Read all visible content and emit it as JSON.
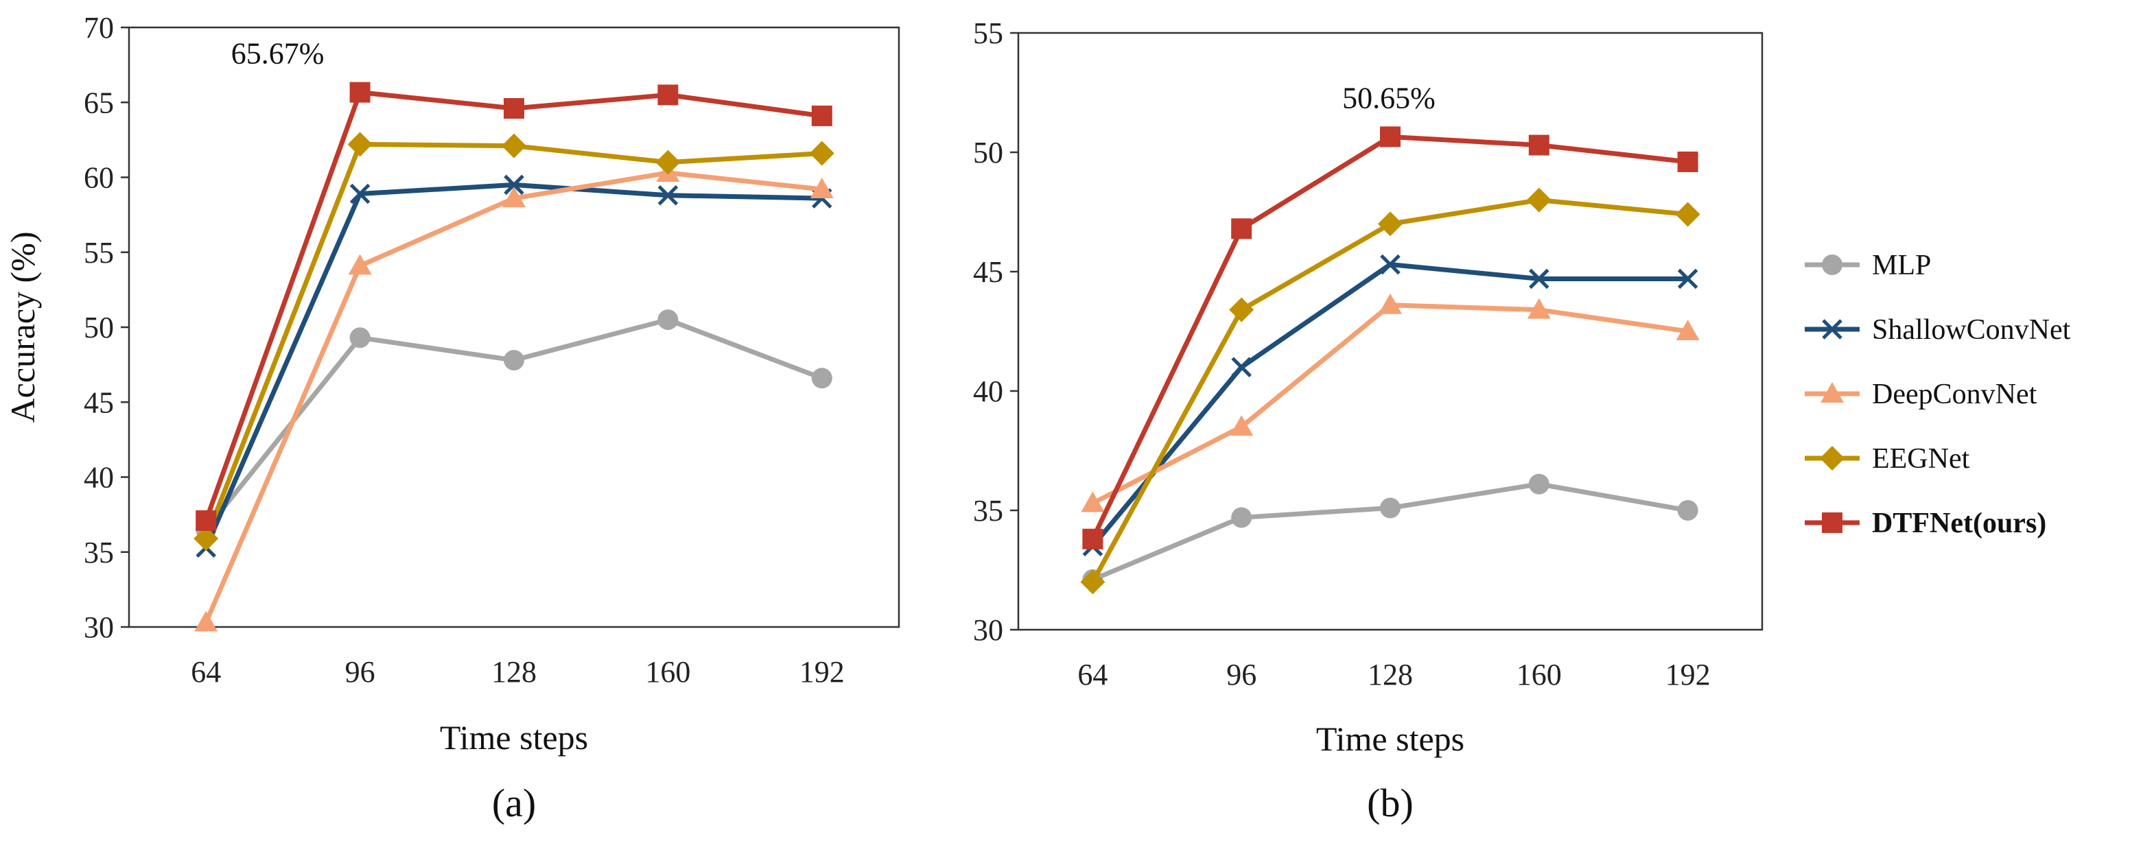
{
  "chart_data": [
    {
      "type": "line",
      "panel_label": "(a)",
      "xlabel": "Time steps",
      "ylabel": "Accuracy (%)",
      "categories": [
        "64",
        "96",
        "128",
        "160",
        "192"
      ],
      "ylim": [
        30,
        70
      ],
      "yticks": [
        "30",
        "35",
        "40",
        "45",
        "50",
        "55",
        "60",
        "65",
        "70"
      ],
      "annotation": {
        "text": "65.67%",
        "series": "DTFNet(ours)",
        "category": "96"
      },
      "series": [
        {
          "name": "MLP",
          "values": [
            36.5,
            49.3,
            47.8,
            50.5,
            46.6
          ]
        },
        {
          "name": "ShallowConvNet",
          "values": [
            35.3,
            58.9,
            59.5,
            58.8,
            58.6
          ]
        },
        {
          "name": "DeepConvNet",
          "values": [
            30.3,
            54.1,
            58.6,
            60.3,
            59.2
          ]
        },
        {
          "name": "EEGNet",
          "values": [
            35.9,
            62.2,
            62.1,
            61.0,
            61.6
          ]
        },
        {
          "name": "DTFNet(ours)",
          "values": [
            37.1,
            65.67,
            64.6,
            65.5,
            64.1
          ]
        }
      ]
    },
    {
      "type": "line",
      "panel_label": "(b)",
      "xlabel": "Time steps",
      "ylabel": "",
      "categories": [
        "64",
        "96",
        "128",
        "160",
        "192"
      ],
      "ylim": [
        30,
        55
      ],
      "yticks": [
        "30",
        "35",
        "40",
        "45",
        "50",
        "55"
      ],
      "annotation": {
        "text": "50.65%",
        "series": "DTFNet(ours)",
        "category": "128"
      },
      "series": [
        {
          "name": "MLP",
          "values": [
            32.1,
            34.7,
            35.1,
            36.1,
            35.0
          ]
        },
        {
          "name": "ShallowConvNet",
          "values": [
            33.5,
            41.0,
            45.3,
            44.7,
            44.7
          ]
        },
        {
          "name": "DeepConvNet",
          "values": [
            35.3,
            38.5,
            43.6,
            43.4,
            42.5
          ]
        },
        {
          "name": "EEGNet",
          "values": [
            32.0,
            43.4,
            47.0,
            48.0,
            47.4
          ]
        },
        {
          "name": "DTFNet(ours)",
          "values": [
            33.8,
            46.8,
            50.65,
            50.3,
            49.6
          ]
        }
      ]
    }
  ],
  "legend": [
    {
      "name": "MLP",
      "color": "#A6A6A6",
      "marker": "circle",
      "bold": false
    },
    {
      "name": "ShallowConvNet",
      "color": "#1F4E79",
      "marker": "x",
      "bold": false
    },
    {
      "name": "DeepConvNet",
      "color": "#F4A072",
      "marker": "triangle",
      "bold": false
    },
    {
      "name": "EEGNet",
      "color": "#BF9000",
      "marker": "diamond",
      "bold": false
    },
    {
      "name": "DTFNet(ours)",
      "color": "#C0392B",
      "marker": "square",
      "bold": true
    }
  ]
}
